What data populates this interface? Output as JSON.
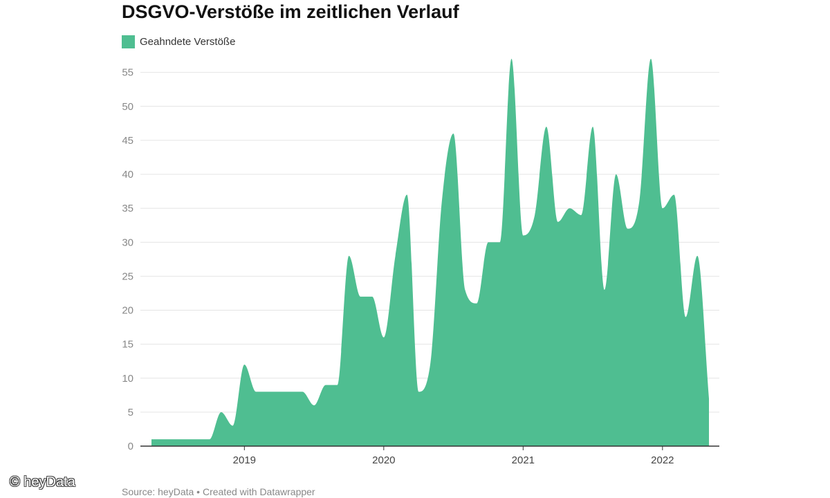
{
  "chart_data": {
    "type": "area",
    "title": "DSGVO-Verstöße im zeitlichen Verlauf",
    "legend": {
      "placement": "top-left",
      "entries": [
        "Geahndete Verstöße"
      ]
    },
    "series": [
      {
        "name": "Geahndete Verstöße",
        "color": "#4fbe91",
        "points": [
          [
            "2018-05",
            1
          ],
          [
            "2018-06",
            1
          ],
          [
            "2018-07",
            1
          ],
          [
            "2018-08",
            1
          ],
          [
            "2018-09",
            1
          ],
          [
            "2018-10",
            1
          ],
          [
            "2018-11",
            5
          ],
          [
            "2018-12",
            3
          ],
          [
            "2019-01",
            12
          ],
          [
            "2019-02",
            8
          ],
          [
            "2019-03",
            8
          ],
          [
            "2019-04",
            8
          ],
          [
            "2019-05",
            8
          ],
          [
            "2019-06",
            8
          ],
          [
            "2019-07",
            6
          ],
          [
            "2019-08",
            9
          ],
          [
            "2019-09",
            9
          ],
          [
            "2019-10",
            28
          ],
          [
            "2019-11",
            22
          ],
          [
            "2019-12",
            22
          ],
          [
            "2020-01",
            16
          ],
          [
            "2020-02",
            28
          ],
          [
            "2020-03",
            37
          ],
          [
            "2020-04",
            8
          ],
          [
            "2020-05",
            12
          ],
          [
            "2020-06",
            36
          ],
          [
            "2020-07",
            46
          ],
          [
            "2020-08",
            23
          ],
          [
            "2020-09",
            21
          ],
          [
            "2020-10",
            30
          ],
          [
            "2020-11",
            30
          ],
          [
            "2020-12",
            57
          ],
          [
            "2021-01",
            31
          ],
          [
            "2021-02",
            34
          ],
          [
            "2021-03",
            47
          ],
          [
            "2021-04",
            33
          ],
          [
            "2021-05",
            35
          ],
          [
            "2021-06",
            34
          ],
          [
            "2021-07",
            47
          ],
          [
            "2021-08",
            23
          ],
          [
            "2021-09",
            40
          ],
          [
            "2021-10",
            32
          ],
          [
            "2021-11",
            36
          ],
          [
            "2021-12",
            57
          ],
          [
            "2022-01",
            35
          ],
          [
            "2022-02",
            37
          ],
          [
            "2022-03",
            19
          ],
          [
            "2022-04",
            28
          ],
          [
            "2022-05",
            7
          ]
        ]
      }
    ],
    "x_ticks": [
      "2019",
      "2020",
      "2021",
      "2022"
    ],
    "y_ticks": [
      0,
      5,
      10,
      15,
      20,
      25,
      30,
      35,
      40,
      45,
      50,
      55
    ],
    "ylim": [
      0,
      57
    ],
    "grid": true
  },
  "source": "Source: heyData • Created with Datawrapper",
  "watermark": "© heyData"
}
